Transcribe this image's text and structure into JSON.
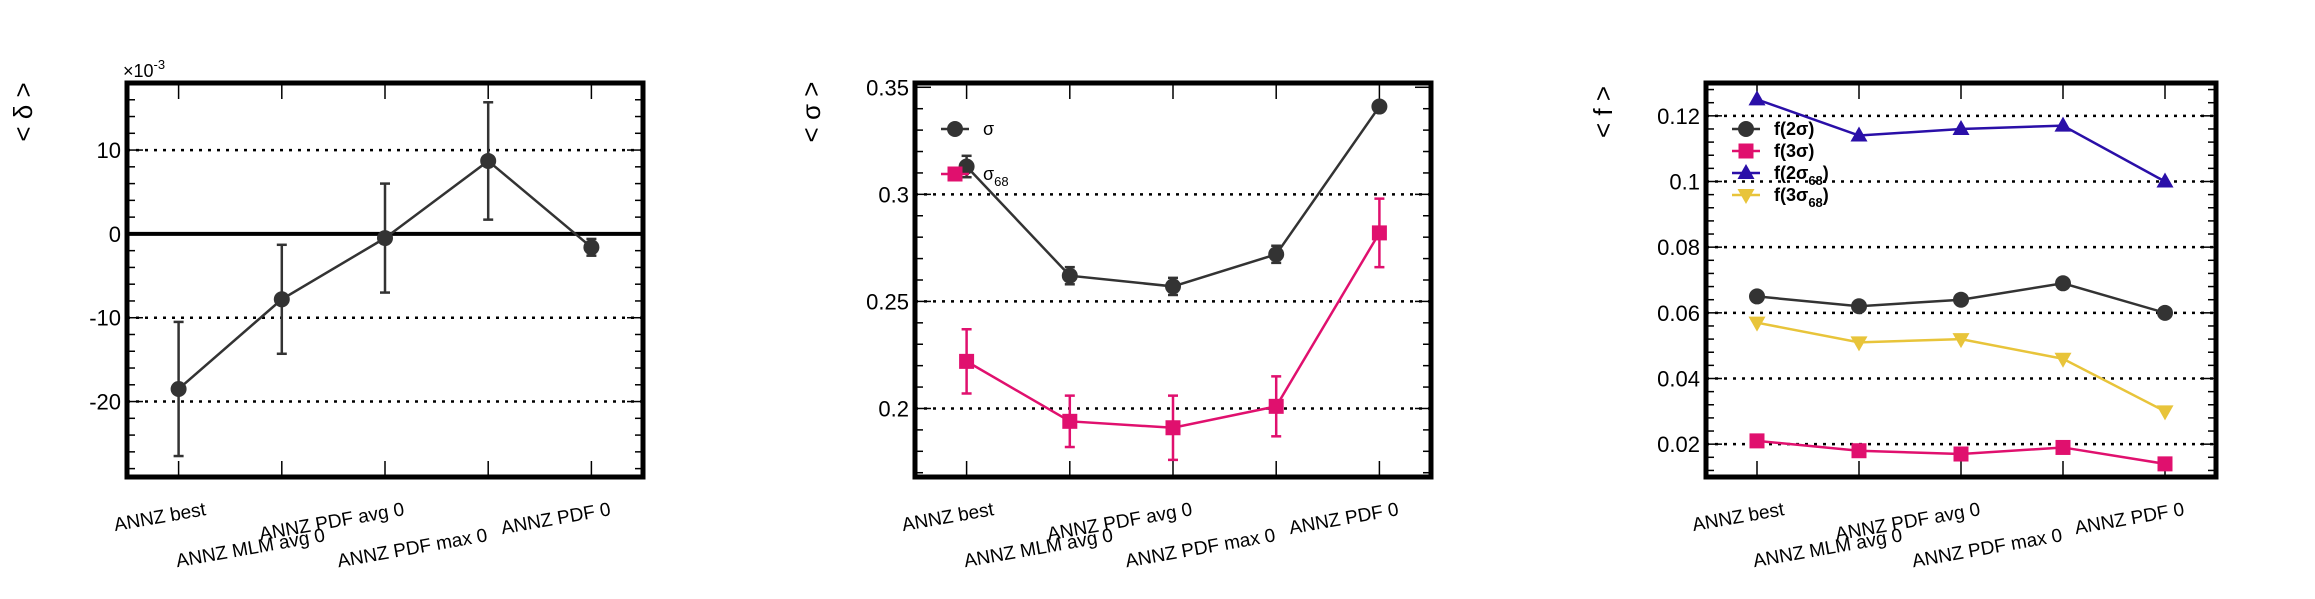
{
  "categories": [
    "ANNZ best",
    "ANNZ MLM avg 0",
    "ANNZ PDF avg 0",
    "ANNZ PDF max 0",
    "ANNZ PDF 0"
  ],
  "chart_data": [
    {
      "type": "line",
      "ylabel_main": "δ",
      "scale_label": "×10",
      "scale_exp": "-3",
      "ylim": [
        -29,
        18
      ],
      "yticks": [
        -20,
        -10,
        0,
        10
      ],
      "grid_y": [
        -20,
        -10,
        10
      ],
      "zero_line": true,
      "series": [
        {
          "name": "",
          "color": "#333333",
          "marker": "circle",
          "values": [
            -18.5,
            -7.8,
            -0.5,
            8.7,
            -1.6
          ],
          "errors": [
            8,
            6.5,
            6.5,
            7,
            1
          ]
        }
      ]
    },
    {
      "type": "line",
      "ylabel_main": "σ",
      "ylim": [
        0.168,
        0.352
      ],
      "yticks": [
        0.2,
        0.25,
        0.3,
        0.35
      ],
      "grid_y": [
        0.2,
        0.25,
        0.3
      ],
      "legend": [
        {
          "name": "σ",
          "sub": ""
        },
        {
          "name": "σ",
          "sub": "68"
        }
      ],
      "series": [
        {
          "name": "σ",
          "color": "#333333",
          "marker": "circle",
          "values": [
            0.313,
            0.262,
            0.257,
            0.272,
            0.341
          ],
          "errors": [
            0.005,
            0.004,
            0.004,
            0.004,
            0.0
          ]
        },
        {
          "name": "σ68",
          "color": "#e0106e",
          "marker": "square",
          "values": [
            0.222,
            0.194,
            0.191,
            0.201,
            0.282
          ],
          "errors": [
            0.015,
            0.012,
            0.015,
            0.014,
            0.016
          ]
        }
      ]
    },
    {
      "type": "line",
      "ylabel_main": "f",
      "ylim": [
        0.01,
        0.13
      ],
      "yticks": [
        0.02,
        0.04,
        0.06,
        0.08,
        0.1,
        0.12
      ],
      "grid_y": [
        0.02,
        0.04,
        0.06,
        0.08,
        0.1,
        0.12
      ],
      "legend": [
        {
          "name": "f(2σ)",
          "sub": ""
        },
        {
          "name": "f(3σ)",
          "sub": ""
        },
        {
          "name": "f(2σ",
          "sub": "68",
          "close": ")"
        },
        {
          "name": "f(3σ",
          "sub": "68",
          "close": ")"
        }
      ],
      "series": [
        {
          "name": "f(2σ)",
          "color": "#333333",
          "marker": "circle",
          "values": [
            0.065,
            0.062,
            0.064,
            0.069,
            0.06
          ]
        },
        {
          "name": "f(3σ)",
          "color": "#e0106e",
          "marker": "square",
          "values": [
            0.021,
            0.018,
            0.017,
            0.019,
            0.014
          ]
        },
        {
          "name": "f(2σ68)",
          "color": "#2a0fa8",
          "marker": "triangle-up",
          "values": [
            0.125,
            0.114,
            0.116,
            0.117,
            0.1
          ]
        },
        {
          "name": "f(3σ68)",
          "color": "#e8c43a",
          "marker": "triangle-down",
          "values": [
            0.057,
            0.051,
            0.052,
            0.046,
            0.03
          ]
        }
      ]
    }
  ]
}
